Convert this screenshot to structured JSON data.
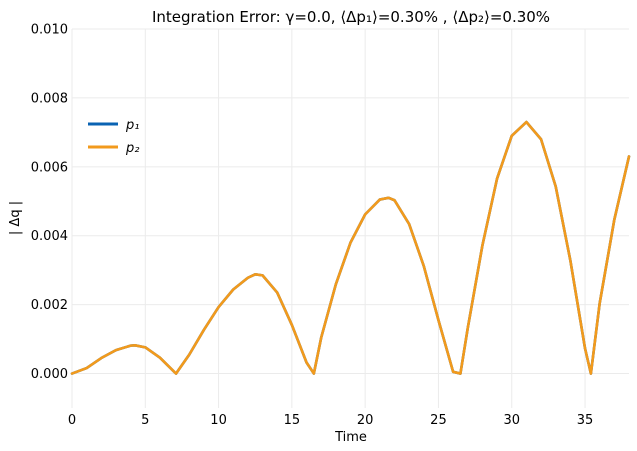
{
  "chart_data": {
    "type": "line",
    "title": "Integration Error: γ=0.0, ⟨Δp₁⟩=0.30% , ⟨Δp₂⟩=0.30%",
    "xlabel": "Time",
    "ylabel": "| Δq |",
    "xlim": [
      0,
      38
    ],
    "ylim": [
      -0.001,
      0.01
    ],
    "x_ticks": [
      "0",
      "5",
      "10",
      "15",
      "20",
      "25",
      "30",
      "35"
    ],
    "y_ticks": [
      "0.000",
      "0.002",
      "0.004",
      "0.006",
      "0.008",
      "0.010"
    ],
    "grid": true,
    "legend_position": "upper-left",
    "series": [
      {
        "name": "p₁",
        "color": "#0a63b3",
        "x": [
          0,
          1,
          2,
          3,
          4,
          4.3,
          5,
          6,
          7,
          7.1,
          8,
          9,
          10,
          11,
          12,
          12.5,
          13,
          14,
          15,
          16,
          16.5,
          17,
          18,
          19,
          20,
          21,
          21.6,
          22,
          23,
          24,
          25,
          26,
          26.5,
          27,
          28,
          29,
          30,
          31,
          32,
          33,
          34,
          35,
          35.4,
          36,
          37,
          38
        ],
        "y": [
          0,
          0.00016,
          0.00045,
          0.00068,
          0.00081,
          0.00082,
          0.00076,
          0.00046,
          4e-05,
          0,
          0.00055,
          0.00127,
          0.00193,
          0.00244,
          0.00278,
          0.00288,
          0.00285,
          0.00235,
          0.00141,
          0.00032,
          0,
          0.00104,
          0.00259,
          0.0038,
          0.00462,
          0.00505,
          0.0051,
          0.00503,
          0.00434,
          0.00312,
          0.00155,
          5e-05,
          0,
          0.00132,
          0.00372,
          0.00566,
          0.0069,
          0.0073,
          0.0068,
          0.00543,
          0.00328,
          0.00073,
          0,
          0.00204,
          0.00447,
          0.0063
        ]
      },
      {
        "name": "p₂",
        "color": "#f29a1c",
        "x": [
          0,
          1,
          2,
          3,
          4,
          4.3,
          5,
          6,
          7,
          7.1,
          8,
          9,
          10,
          11,
          12,
          12.5,
          13,
          14,
          15,
          16,
          16.5,
          17,
          18,
          19,
          20,
          21,
          21.6,
          22,
          23,
          24,
          25,
          26,
          26.5,
          27,
          28,
          29,
          30,
          31,
          32,
          33,
          34,
          35,
          35.4,
          36,
          37,
          38
        ],
        "y": [
          0,
          0.00016,
          0.00045,
          0.00068,
          0.00081,
          0.00082,
          0.00076,
          0.00046,
          4e-05,
          0,
          0.00055,
          0.00127,
          0.00193,
          0.00244,
          0.00278,
          0.00288,
          0.00285,
          0.00235,
          0.00141,
          0.00032,
          0,
          0.00104,
          0.00259,
          0.0038,
          0.00462,
          0.00505,
          0.0051,
          0.00503,
          0.00434,
          0.00312,
          0.00155,
          5e-05,
          0,
          0.00132,
          0.00372,
          0.00566,
          0.0069,
          0.0073,
          0.0068,
          0.00543,
          0.00328,
          0.00073,
          0,
          0.00204,
          0.00447,
          0.0063
        ]
      }
    ]
  }
}
